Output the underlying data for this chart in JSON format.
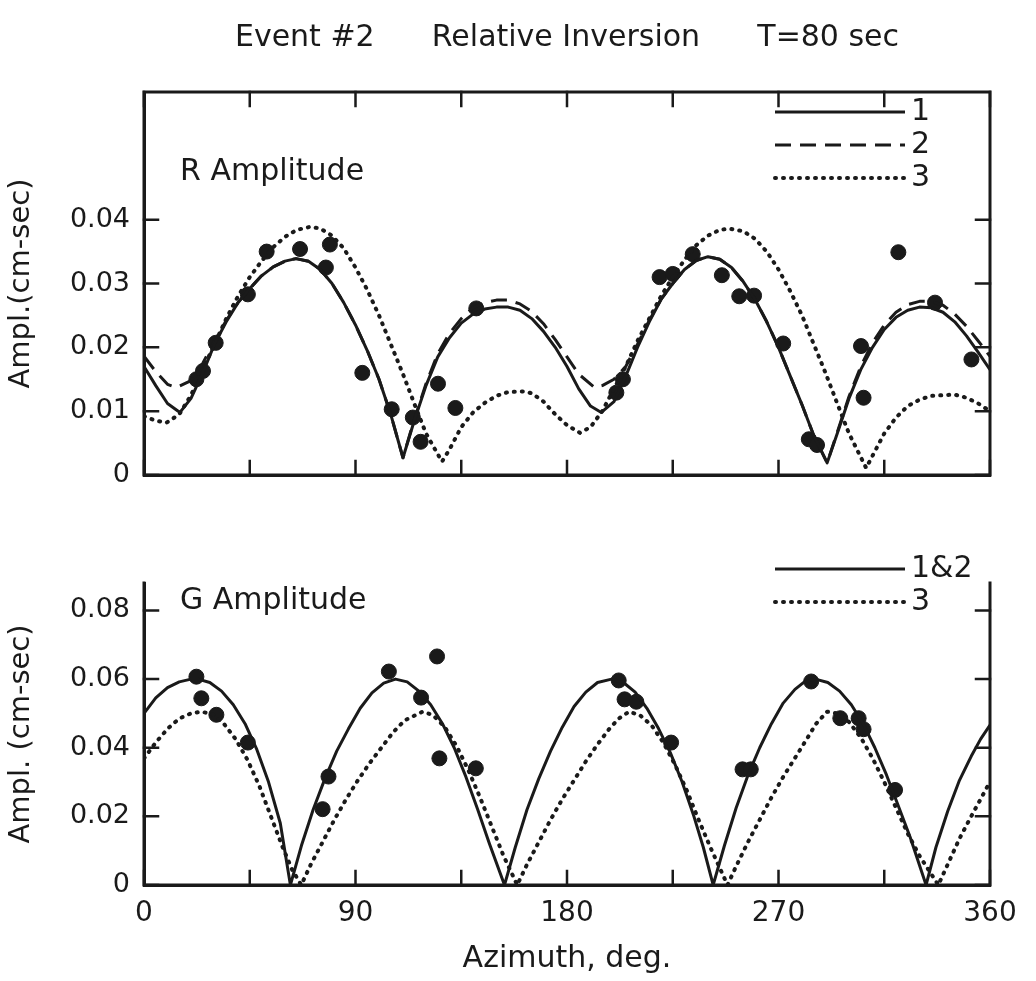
{
  "chart_data": [
    {
      "type": "line",
      "title": "Event #2      Relative Inversion      T=80 sec",
      "subtitle": "R Amplitude",
      "ylabel": "Ampl.(cm-sec)",
      "xlim": [
        0,
        360
      ],
      "xticks": [
        0,
        {
          "value": 45,
          "label": null
        },
        90,
        {
          "value": 135,
          "label": null
        },
        180,
        {
          "value": 225,
          "label": null
        },
        270,
        {
          "value": 315,
          "label": null
        },
        360
      ],
      "ylim": [
        0,
        0.06
      ],
      "yticks": [
        0,
        0.01,
        0.02,
        0.03,
        0.04
      ],
      "tick_labels": "y",
      "legend": "top right",
      "series": [
        {
          "name": "1",
          "type": "line",
          "color": "#1a1a1a",
          "line_style": "solid",
          "marker": "none",
          "x": [
            0,
            5,
            10,
            15.3,
            20,
            25,
            30,
            35,
            40,
            45,
            50,
            55,
            60,
            64.7,
            70,
            75,
            80,
            85,
            90,
            95,
            100,
            105,
            110.2,
            115,
            120,
            125,
            130,
            135,
            140,
            145,
            150,
            155,
            160,
            165,
            170,
            175,
            180,
            185,
            190,
            194.6,
            200,
            205,
            210,
            215,
            220,
            225,
            230,
            235,
            240,
            245,
            250,
            255,
            260,
            265,
            270,
            275,
            280,
            285,
            290.7,
            295,
            300,
            305,
            310,
            315,
            320,
            325,
            330,
            335,
            340,
            345,
            350,
            355,
            360
          ],
          "values": [
            0.017,
            0.014,
            0.0112,
            0.0098,
            0.012,
            0.016,
            0.0205,
            0.024,
            0.027,
            0.0292,
            0.0312,
            0.0326,
            0.0335,
            0.0339,
            0.0335,
            0.0322,
            0.03,
            0.027,
            0.0235,
            0.0195,
            0.015,
            0.0095,
            0.0027,
            0.0085,
            0.014,
            0.0185,
            0.0215,
            0.0238,
            0.0252,
            0.026,
            0.0263,
            0.0263,
            0.0258,
            0.0245,
            0.0225,
            0.02,
            0.017,
            0.0135,
            0.0108,
            0.0098,
            0.0115,
            0.0155,
            0.02,
            0.024,
            0.0275,
            0.03,
            0.0322,
            0.0336,
            0.0342,
            0.0338,
            0.0325,
            0.0303,
            0.0275,
            0.024,
            0.02,
            0.0155,
            0.011,
            0.0062,
            0.0019,
            0.0065,
            0.012,
            0.0165,
            0.02,
            0.0228,
            0.0247,
            0.0258,
            0.0263,
            0.0262,
            0.0255,
            0.024,
            0.0218,
            0.0192,
            0.0165
          ]
        },
        {
          "name": "2",
          "type": "line",
          "color": "#1a1a1a",
          "line_style": "dashed",
          "marker": "none",
          "x": [
            0,
            5,
            10,
            13.8,
            20,
            25,
            30,
            35,
            40,
            45,
            50,
            55,
            60,
            64.7,
            70,
            75,
            80,
            85,
            90,
            95,
            100,
            105,
            110.2,
            115,
            120,
            125,
            130,
            135,
            140,
            145,
            150,
            155,
            160,
            165,
            170,
            175,
            180,
            185,
            191.8,
            195,
            200,
            205,
            210,
            215,
            220,
            225,
            230,
            235,
            240,
            245,
            250,
            255,
            260,
            265,
            270,
            275,
            280,
            285,
            290.7,
            295,
            300,
            305,
            310,
            315,
            320,
            325,
            330,
            335,
            340,
            345,
            350,
            355,
            360
          ],
          "values": [
            0.0186,
            0.0162,
            0.0142,
            0.0137,
            0.0148,
            0.0175,
            0.021,
            0.0242,
            0.027,
            0.0292,
            0.0312,
            0.0326,
            0.0335,
            0.0339,
            0.0335,
            0.0322,
            0.03,
            0.027,
            0.0235,
            0.0195,
            0.015,
            0.0095,
            0.0027,
            0.0087,
            0.0143,
            0.019,
            0.0222,
            0.0245,
            0.0262,
            0.027,
            0.0274,
            0.0274,
            0.0268,
            0.0256,
            0.0237,
            0.0212,
            0.0185,
            0.0158,
            0.0137,
            0.014,
            0.015,
            0.017,
            0.0205,
            0.0242,
            0.0275,
            0.03,
            0.0322,
            0.0336,
            0.0342,
            0.0338,
            0.0325,
            0.0303,
            0.0275,
            0.024,
            0.02,
            0.0155,
            0.011,
            0.0062,
            0.0019,
            0.0067,
            0.0123,
            0.017,
            0.0207,
            0.0235,
            0.0255,
            0.0267,
            0.0272,
            0.0272,
            0.0266,
            0.0252,
            0.0233,
            0.021,
            0.0186
          ]
        },
        {
          "name": "3",
          "type": "line",
          "color": "#1a1a1a",
          "line_style": "dotted",
          "marker": "none",
          "x": [
            0,
            5,
            9.6,
            15,
            20,
            25,
            30,
            35,
            40,
            45,
            50,
            55,
            60,
            65,
            71,
            75,
            80,
            85,
            90,
            95,
            100,
            105,
            110,
            115,
            120,
            126.8,
            130,
            135,
            140,
            145,
            150,
            155,
            162,
            165,
            170,
            175,
            180,
            185.5,
            190,
            195,
            200,
            205,
            210,
            215,
            220,
            225,
            230,
            235,
            240,
            245,
            249,
            255,
            260,
            265,
            270,
            275,
            280,
            285,
            290,
            295,
            300,
            307.3,
            310,
            315,
            320,
            325,
            330,
            335,
            345,
            350,
            355,
            360
          ],
          "values": [
            0.0092,
            0.0085,
            0.0082,
            0.0095,
            0.0125,
            0.0165,
            0.0205,
            0.0245,
            0.028,
            0.031,
            0.0335,
            0.0357,
            0.0373,
            0.0384,
            0.0389,
            0.0386,
            0.0375,
            0.0355,
            0.0325,
            0.029,
            0.025,
            0.0205,
            0.016,
            0.0112,
            0.0065,
            0.0021,
            0.004,
            0.0075,
            0.0098,
            0.0113,
            0.0124,
            0.013,
            0.0131,
            0.0128,
            0.0115,
            0.0095,
            0.0078,
            0.0066,
            0.0075,
            0.01,
            0.0135,
            0.017,
            0.021,
            0.0245,
            0.028,
            0.031,
            0.0337,
            0.036,
            0.0375,
            0.0384,
            0.0386,
            0.0382,
            0.037,
            0.035,
            0.0322,
            0.0288,
            0.025,
            0.0205,
            0.016,
            0.0112,
            0.0065,
            0.0011,
            0.003,
            0.0065,
            0.009,
            0.0108,
            0.0118,
            0.0124,
            0.0126,
            0.0121,
            0.0112,
            0.01
          ]
        },
        {
          "type": "scatter",
          "color": "#1a1a1a",
          "marker": "circle",
          "x": [
            22.3,
            25.1,
            30.5,
            44.2,
            52.2,
            66.4,
            77.4,
            79.1,
            92.9,
            105.4,
            114.4,
            117.7,
            125.1,
            132.5,
            141.4,
            201,
            203.8,
            219.4,
            225,
            233.5,
            245.9,
            253.3,
            259.6,
            272,
            282.9,
            286.4,
            305.1,
            306.2,
            321,
            336.6,
            352.1
          ],
          "values": [
            0.015,
            0.0163,
            0.0207,
            0.0283,
            0.035,
            0.0354,
            0.0325,
            0.0361,
            0.016,
            0.0103,
            0.009,
            0.0052,
            0.0143,
            0.0105,
            0.0261,
            0.0129,
            0.015,
            0.031,
            0.0315,
            0.0346,
            0.0313,
            0.028,
            0.0281,
            0.0206,
            0.0056,
            0.0047,
            0.0202,
            0.0121,
            0.0349,
            0.027,
            0.0181
          ]
        }
      ]
    },
    {
      "type": "line",
      "subtitle": "G Amplitude",
      "xlabel": "Azimuth, deg.",
      "ylabel": "Ampl. (cm-sec)",
      "xlim": [
        0,
        360
      ],
      "xticks": [
        0,
        {
          "value": 45,
          "label": null
        },
        90,
        {
          "value": 135,
          "label": null
        },
        180,
        {
          "value": 225,
          "label": null
        },
        270,
        {
          "value": 315,
          "label": null
        },
        360
      ],
      "ylim": [
        0,
        0.088
      ],
      "yticks": [
        0,
        0.02,
        0.04,
        0.06,
        0.08
      ],
      "legend": "top right",
      "series": [
        {
          "name": "1&2",
          "type": "line",
          "color": "#1a1a1a",
          "line_style": "solid",
          "marker": "none",
          "x": [
            0,
            5,
            10,
            15,
            20,
            23,
            28,
            33,
            38,
            43,
            48,
            53,
            58,
            62.3,
            67,
            72,
            77,
            82,
            87,
            92,
            97,
            102,
            107,
            112,
            117,
            122,
            127,
            132,
            137,
            142,
            147,
            153.4,
            158,
            163,
            168,
            173,
            178,
            183,
            188,
            193,
            199,
            204,
            209,
            214,
            219,
            224,
            229,
            234,
            238,
            242.2,
            247,
            252,
            257,
            262,
            267,
            272,
            277,
            281,
            285.7,
            291,
            296,
            301,
            306,
            311,
            316,
            321,
            326,
            332.8,
            337,
            342,
            347,
            352,
            356,
            360
          ],
          "values": [
            0.05,
            0.0545,
            0.0575,
            0.0592,
            0.06,
            0.06,
            0.059,
            0.0565,
            0.0525,
            0.047,
            0.0395,
            0.03,
            0.018,
            0,
            0.0115,
            0.022,
            0.031,
            0.039,
            0.0455,
            0.0515,
            0.056,
            0.0588,
            0.06,
            0.0592,
            0.0565,
            0.0525,
            0.047,
            0.04,
            0.0315,
            0.022,
            0.012,
            0,
            0.011,
            0.022,
            0.031,
            0.039,
            0.046,
            0.052,
            0.0562,
            0.059,
            0.06,
            0.059,
            0.0562,
            0.0515,
            0.0455,
            0.0385,
            0.03,
            0.02,
            0.011,
            0,
            0.0115,
            0.0225,
            0.032,
            0.04,
            0.047,
            0.053,
            0.057,
            0.0592,
            0.06,
            0.059,
            0.0565,
            0.0525,
            0.047,
            0.04,
            0.032,
            0.023,
            0.014,
            0,
            0.011,
            0.0215,
            0.0305,
            0.0375,
            0.0425,
            0.0466
          ]
        },
        {
          "name": "3",
          "type": "line",
          "color": "#1a1a1a",
          "line_style": "dotted",
          "marker": "none",
          "x": [
            0,
            5,
            10,
            15,
            20,
            24.4,
            29,
            34,
            39,
            44,
            49,
            54,
            59,
            63,
            66.9,
            71,
            76,
            81,
            86,
            91,
            96,
            101,
            106,
            111,
            118.5,
            123,
            128,
            133,
            138,
            143,
            148,
            153,
            158.8,
            163,
            168,
            173,
            178,
            183,
            188,
            193,
            198,
            202,
            206.4,
            211,
            216,
            221,
            226,
            231,
            236,
            241,
            248.3,
            252,
            257,
            262,
            267,
            272,
            277,
            282,
            286,
            290.7,
            295,
            300,
            305,
            310,
            315,
            320,
            325,
            330,
            338,
            342,
            347,
            352,
            356,
            360
          ],
          "values": [
            0.0369,
            0.0415,
            0.0455,
            0.0485,
            0.05,
            0.0505,
            0.0498,
            0.047,
            0.0425,
            0.0365,
            0.029,
            0.02,
            0.011,
            0.0045,
            0,
            0.006,
            0.0125,
            0.019,
            0.025,
            0.0305,
            0.0355,
            0.04,
            0.0445,
            0.048,
            0.0505,
            0.0495,
            0.046,
            0.0405,
            0.0335,
            0.0255,
            0.017,
            0.0085,
            0,
            0.006,
            0.0125,
            0.019,
            0.025,
            0.0305,
            0.036,
            0.041,
            0.0455,
            0.0485,
            0.0505,
            0.0495,
            0.0465,
            0.0415,
            0.035,
            0.0275,
            0.019,
            0.011,
            0,
            0.0055,
            0.0125,
            0.019,
            0.0255,
            0.0315,
            0.037,
            0.0425,
            0.047,
            0.0505,
            0.05,
            0.0475,
            0.043,
            0.037,
            0.03,
            0.0225,
            0.015,
            0.0085,
            0,
            0.006,
            0.0135,
            0.02,
            0.025,
            0.0301
          ]
        },
        {
          "type": "scatter",
          "color": "#1a1a1a",
          "marker": "circle",
          "x": [
            22.3,
            24.4,
            30.8,
            44.2,
            76,
            78.5,
            104.2,
            117.9,
            124.7,
            125.7,
            141.2,
            202,
            204.5,
            209.5,
            224.3,
            254.7,
            258.2,
            283.9,
            296.3,
            304.1,
            306.2,
            319.6
          ],
          "values": [
            0.0607,
            0.0544,
            0.0496,
            0.0415,
            0.0221,
            0.0316,
            0.0622,
            0.0546,
            0.0666,
            0.0369,
            0.034,
            0.0596,
            0.0541,
            0.0534,
            0.0415,
            0.0337,
            0.0337,
            0.0593,
            0.0486,
            0.0486,
            0.0454,
            0.0277
          ]
        }
      ]
    }
  ]
}
